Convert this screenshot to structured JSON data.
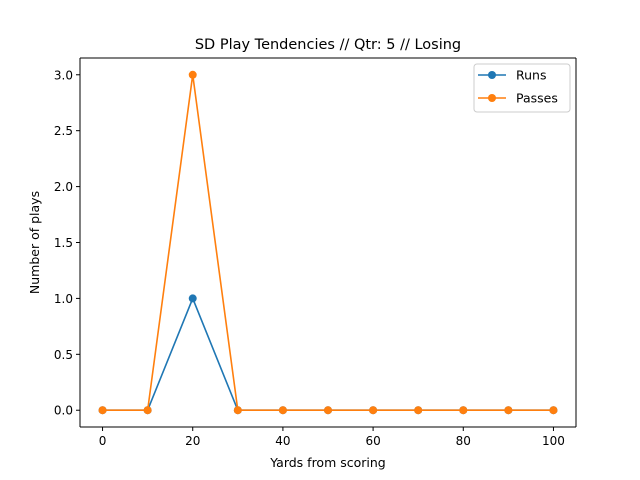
{
  "chart_data": {
    "type": "line",
    "title": "SD Play Tendencies // Qtr: 5 // Losing",
    "xlabel": "Yards from scoring",
    "ylabel": "Number of plays",
    "x": [
      0,
      10,
      20,
      30,
      40,
      50,
      60,
      70,
      80,
      90,
      100
    ],
    "xlim": [
      -5,
      105
    ],
    "ylim": [
      -0.15,
      3.15
    ],
    "xticks": [
      0,
      20,
      40,
      60,
      80,
      100
    ],
    "xtick_labels": [
      "0",
      "20",
      "40",
      "60",
      "80",
      "100"
    ],
    "yticks": [
      0.0,
      0.5,
      1.0,
      1.5,
      2.0,
      2.5,
      3.0
    ],
    "ytick_labels": [
      "0.0",
      "0.5",
      "1.0",
      "1.5",
      "2.0",
      "2.5",
      "3.0"
    ],
    "grid": false,
    "legend_position": "top-right",
    "series": [
      {
        "name": "Runs",
        "color": "#1f77b4",
        "marker": "circle",
        "values": [
          0,
          0,
          1,
          0,
          0,
          0,
          0,
          0,
          0,
          0,
          0
        ]
      },
      {
        "name": "Passes",
        "color": "#ff7f0e",
        "marker": "circle",
        "values": [
          0,
          0,
          3,
          0,
          0,
          0,
          0,
          0,
          0,
          0,
          0
        ]
      }
    ]
  }
}
